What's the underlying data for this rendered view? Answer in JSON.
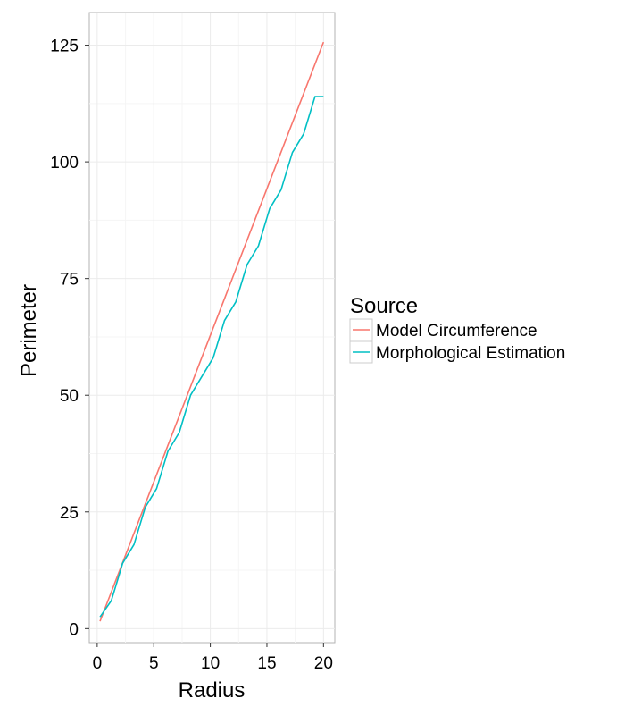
{
  "chart_data": {
    "type": "line",
    "title": "",
    "xlabel": "Radius",
    "ylabel": "Perimeter",
    "xlim": [
      -0.7,
      21
    ],
    "ylim": [
      -3,
      132
    ],
    "xticks": [
      0,
      5,
      10,
      15,
      20
    ],
    "yticks": [
      0,
      25,
      50,
      75,
      100,
      125
    ],
    "grid": true,
    "legend": {
      "title": "Source",
      "position": "right"
    },
    "series": [
      {
        "name": "Model Circumference",
        "color": "#F8766D",
        "x": [
          0.25,
          20
        ],
        "y": [
          1.57,
          125.66
        ]
      },
      {
        "name": "Morphological Estimation",
        "color": "#00BFC4",
        "x": [
          0.25,
          1.25,
          2.25,
          3.25,
          4.25,
          5.25,
          6.25,
          7.25,
          8.25,
          9.25,
          10.25,
          11.25,
          12.25,
          13.25,
          14.25,
          15.25,
          16.25,
          17.25,
          18.25,
          19.25,
          20
        ],
        "y": [
          2.5,
          6,
          14,
          18,
          26,
          30,
          38,
          42,
          50,
          54,
          58,
          66,
          70,
          78,
          82,
          90,
          94,
          102,
          106,
          114,
          114
        ]
      }
    ]
  }
}
